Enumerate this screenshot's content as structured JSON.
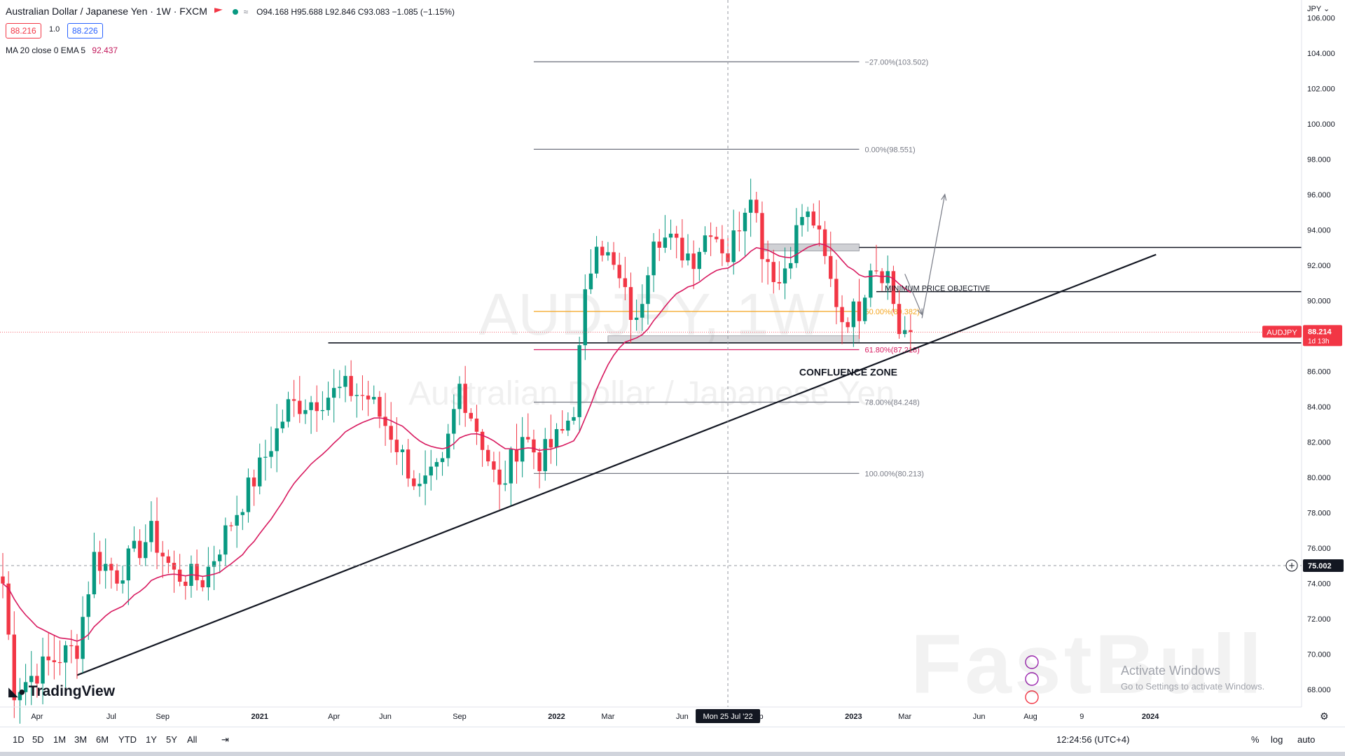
{
  "header": {
    "title": "Australian Dollar / Japanese Yen · 1W · FXCM",
    "ohlc": "O94.168 H95.688 L92.846 C93.083 −1.085 (−1.15%)",
    "sell_price": "88.216",
    "spread": "1.0",
    "buy_price": "88.226",
    "indicator_label": "MA 20 close 0 EMA 5",
    "indicator_value": "92.437"
  },
  "watermark": {
    "symbol": "AUDJPY, 1W",
    "name": "Australian Dollar / Japanese Yen"
  },
  "currency_label": "JPY",
  "branding": {
    "logo": "TradingView",
    "overlay": "FastBull"
  },
  "activate": {
    "line1": "Activate Windows",
    "line2": "Go to Settings to activate Windows."
  },
  "bottom_bar": {
    "timeframes": [
      "1D",
      "5D",
      "1M",
      "3M",
      "6M",
      "YTD",
      "1Y",
      "5Y",
      "All"
    ],
    "clock": "12:24:56 (UTC+4)",
    "options": [
      "%",
      "log",
      "auto"
    ]
  },
  "colors": {
    "up": "#089981",
    "down": "#f23645",
    "ma": "#d81b60",
    "fib": "#787b86",
    "fib50": "#f4a41d",
    "fib618": "#d81b60"
  },
  "chart_data": {
    "type": "candlestick",
    "timeframe": "1W",
    "ylim": [
      67,
      107
    ],
    "y_ticks": [
      "68.000",
      "70.000",
      "72.000",
      "74.000",
      "76.000",
      "78.000",
      "80.000",
      "82.000",
      "84.000",
      "86.000",
      "88.000",
      "90.000",
      "92.000",
      "94.000",
      "96.000",
      "98.000",
      "100.000",
      "102.000",
      "104.000",
      "106.000"
    ],
    "x_ticks": [
      {
        "label": "Apr",
        "week": 6
      },
      {
        "label": "Jul",
        "week": 19
      },
      {
        "label": "Sep",
        "week": 28
      },
      {
        "label": "2021",
        "week": 45
      },
      {
        "label": "Apr",
        "week": 58
      },
      {
        "label": "Jun",
        "week": 67
      },
      {
        "label": "Sep",
        "week": 80
      },
      {
        "label": "2022",
        "week": 97
      },
      {
        "label": "Mar",
        "week": 106
      },
      {
        "label": "Jun",
        "week": 119
      },
      {
        "label": "Sep",
        "week": 132
      },
      {
        "label": "2023",
        "week": 149
      },
      {
        "label": "Mar",
        "week": 158
      },
      {
        "label": "Jun",
        "week": 171
      },
      {
        "label": "Aug",
        "week": 180
      },
      {
        "label": "9",
        "week": 189
      },
      {
        "label": "2024",
        "week": 201
      }
    ],
    "crosshair": {
      "label": "Mon 25 Jul '22",
      "week": 127,
      "price": 75.002
    },
    "last_price": {
      "symbol": "AUDJPY",
      "value": "88.214",
      "countdown": "1d 13h"
    },
    "cursor_price": "75.002",
    "fib_levels": [
      {
        "label": "−27.00%(103.502)",
        "price": 103.502
      },
      {
        "label": "0.00%(98.551)",
        "price": 98.551
      },
      {
        "label": "50.00%(89.382)",
        "price": 89.382
      },
      {
        "label": "61.80%(87.218)",
        "price": 87.218
      },
      {
        "label": "78.00%(84.248)",
        "price": 84.248
      },
      {
        "label": "100.00%(80.213)",
        "price": 80.213
      }
    ],
    "annotations": [
      {
        "text": "MINIMUM PRICE OBJECTIVE",
        "price": 90.5
      },
      {
        "text": "CONFLUENCE ZONE",
        "price": 86.0
      }
    ],
    "horizontal_lines": [
      {
        "price": 93.0,
        "from_week": 150
      },
      {
        "price": 90.5,
        "from_week": 153
      },
      {
        "price": 87.6,
        "from_week": 57
      }
    ],
    "trendline": {
      "start": {
        "week": 13,
        "price": 68.8
      },
      "end": {
        "week": 202,
        "price": 92.6
      }
    },
    "anchors": [
      {
        "week": 0,
        "price": 74.0
      },
      {
        "week": 2,
        "price": 68.0
      },
      {
        "week": 8,
        "price": 69.5
      },
      {
        "week": 13,
        "price": 70.4
      },
      {
        "week": 16,
        "price": 75.5
      },
      {
        "week": 20,
        "price": 74.5
      },
      {
        "week": 26,
        "price": 76.8
      },
      {
        "week": 30,
        "price": 74.5
      },
      {
        "week": 35,
        "price": 74.2
      },
      {
        "week": 40,
        "price": 77.5
      },
      {
        "week": 45,
        "price": 80.5
      },
      {
        "week": 50,
        "price": 84.0
      },
      {
        "week": 55,
        "price": 84.4
      },
      {
        "week": 60,
        "price": 85.0
      },
      {
        "week": 64,
        "price": 84.5
      },
      {
        "week": 68,
        "price": 82.5
      },
      {
        "week": 73,
        "price": 79.2
      },
      {
        "week": 77,
        "price": 80.5
      },
      {
        "week": 80,
        "price": 85.2
      },
      {
        "week": 84,
        "price": 82.0
      },
      {
        "week": 87,
        "price": 79.2
      },
      {
        "week": 91,
        "price": 82.5
      },
      {
        "week": 94,
        "price": 81.0
      },
      {
        "week": 98,
        "price": 82.5
      },
      {
        "week": 100,
        "price": 84.0
      },
      {
        "week": 102,
        "price": 90.0
      },
      {
        "week": 104,
        "price": 93.8
      },
      {
        "week": 108,
        "price": 91.0
      },
      {
        "week": 111,
        "price": 88.5
      },
      {
        "week": 114,
        "price": 94.0
      },
      {
        "week": 118,
        "price": 93.0
      },
      {
        "week": 121,
        "price": 92.5
      },
      {
        "week": 124,
        "price": 94.3
      },
      {
        "week": 127,
        "price": 92.5
      },
      {
        "week": 131,
        "price": 96.5
      },
      {
        "week": 133,
        "price": 93.0
      },
      {
        "week": 136,
        "price": 91.0
      },
      {
        "week": 140,
        "price": 94.8
      },
      {
        "week": 142,
        "price": 94.5
      },
      {
        "week": 145,
        "price": 91.0
      },
      {
        "week": 147,
        "price": 89.0
      },
      {
        "week": 150,
        "price": 89.5
      },
      {
        "week": 152,
        "price": 92.2
      },
      {
        "week": 155,
        "price": 91.5
      },
      {
        "week": 157,
        "price": 88.3
      },
      {
        "week": 159,
        "price": 88.214
      }
    ],
    "ma": {
      "name": "MA 20 close 0 EMA 5",
      "last_value": 92.437
    },
    "projection_arrows": [
      {
        "from": {
          "week": 161,
          "price": 89.0
        },
        "to": {
          "week": 165,
          "price": 96.0
        }
      },
      {
        "from": {
          "week": 158,
          "price": 91.5
        },
        "to": {
          "week": 161,
          "price": 89.2
        }
      }
    ]
  }
}
